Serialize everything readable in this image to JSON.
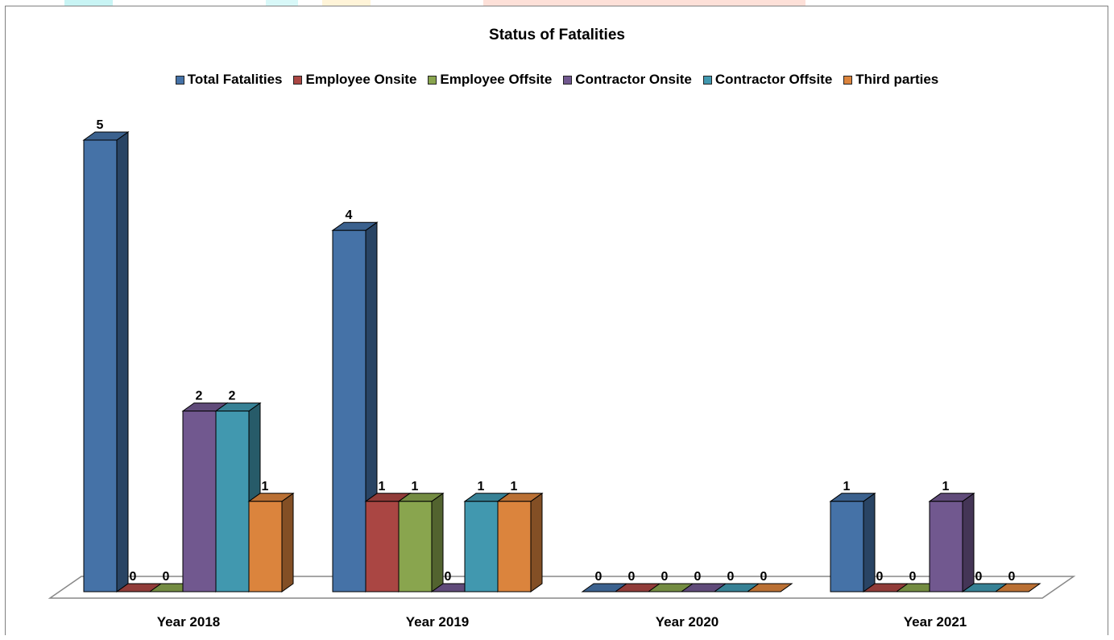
{
  "chart_data": {
    "type": "bar",
    "title": "Status of Fatalities",
    "categories": [
      "Year 2018",
      "Year 2019",
      "Year 2020",
      "Year 2021"
    ],
    "series": [
      {
        "name": "Total Fatalities",
        "color": "#4572A7",
        "values": [
          5,
          4,
          0,
          1
        ]
      },
      {
        "name": "Employee Onsite",
        "color": "#AA4643",
        "values": [
          0,
          1,
          0,
          0
        ]
      },
      {
        "name": "Employee Offsite",
        "color": "#89A54E",
        "values": [
          0,
          1,
          0,
          0
        ]
      },
      {
        "name": "Contractor Onsite",
        "color": "#71588F",
        "values": [
          2,
          0,
          0,
          1
        ]
      },
      {
        "name": "Contractor Offsite",
        "color": "#4198AF",
        "values": [
          2,
          1,
          0,
          0
        ]
      },
      {
        "name": "Third parties",
        "color": "#DB843D",
        "values": [
          1,
          1,
          0,
          0
        ]
      }
    ],
    "ylim": [
      0,
      5
    ],
    "grid": false,
    "legend_position": "top",
    "style": "3d-clustered-column"
  }
}
